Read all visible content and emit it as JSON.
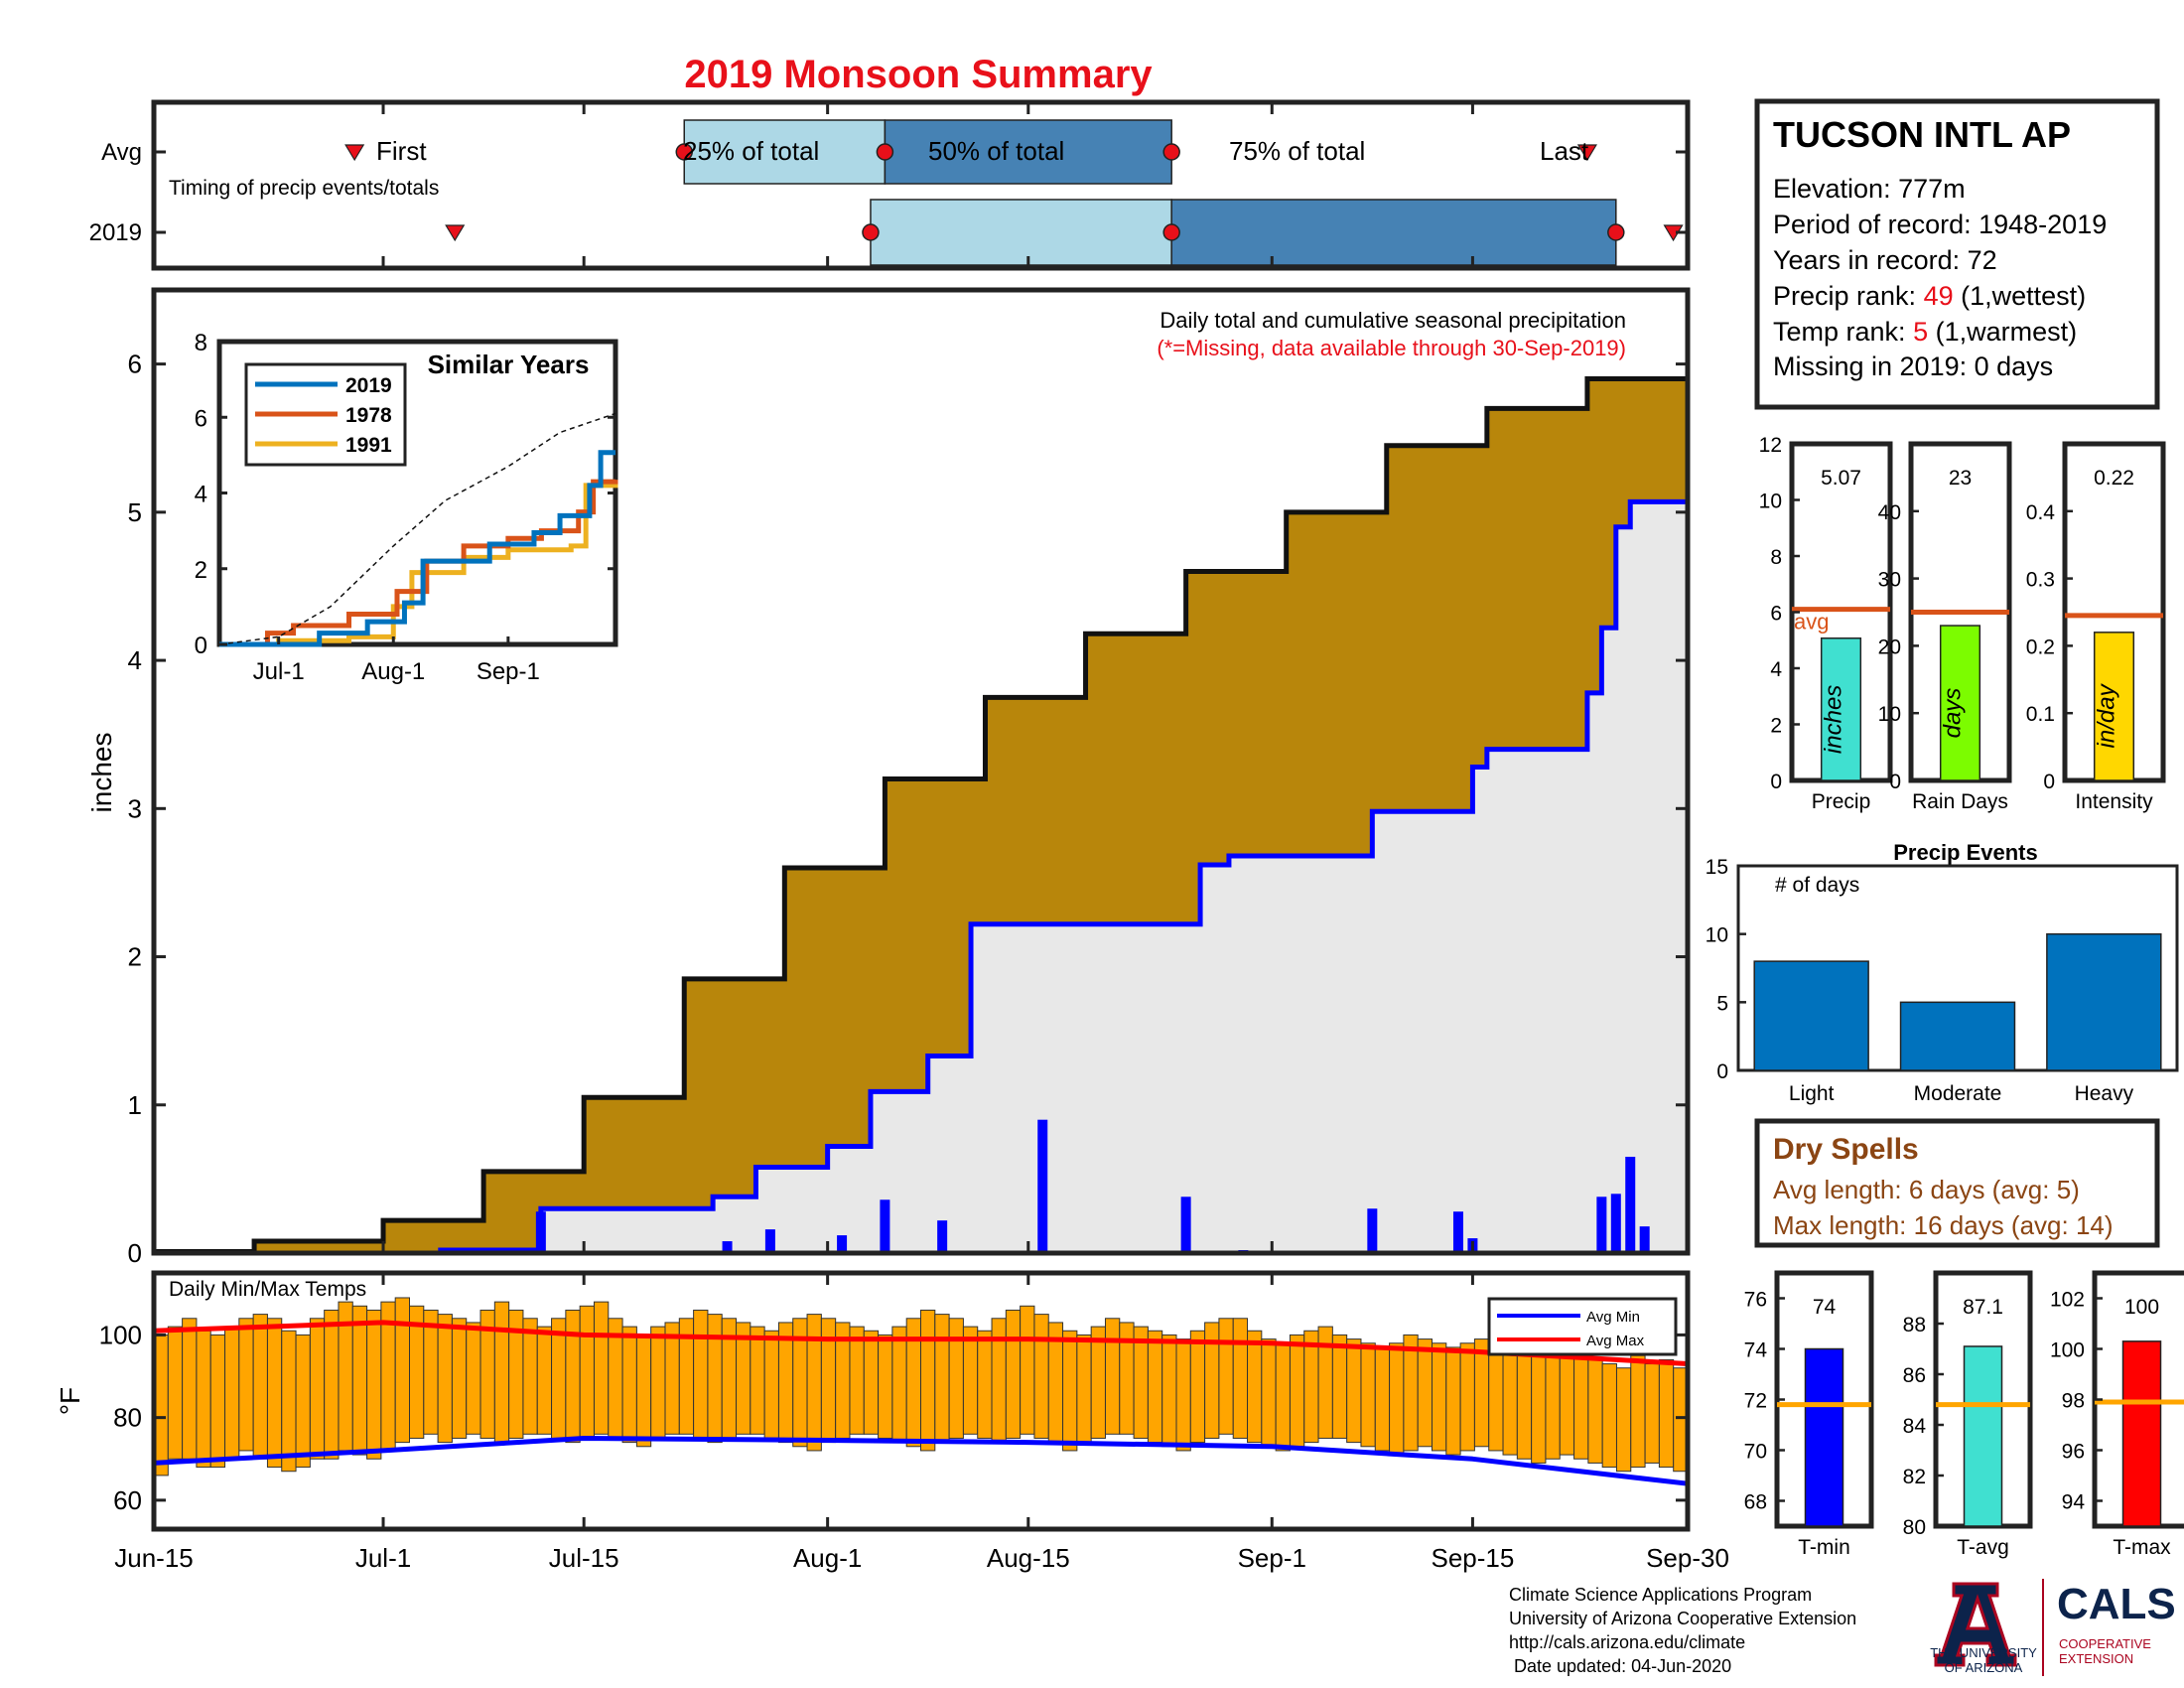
{
  "page": {
    "title": "2019 Monsoon Summary",
    "title_color": "#e8101a"
  },
  "timing_panel": {
    "row_labels": [
      "Avg",
      "2019"
    ],
    "subtitle": "Timing of precip events/totals",
    "labels": {
      "first": "First",
      "q25": "25% of total",
      "q50": "50% of total",
      "q75": "75% of total",
      "last": "Last"
    },
    "avg": {
      "first": "2019-06-29",
      "q25": "2019-07-22",
      "q50": "2019-08-05",
      "q75": "2019-08-25",
      "last": "2019-09-23"
    },
    "y2019": {
      "first": "2019-07-06",
      "q25": "2019-08-04",
      "q50": "2019-08-25",
      "q75": "2019-09-25",
      "last": "2019-09-29"
    },
    "colors": {
      "light": "#add8e6",
      "dark": "#4682b4",
      "marker": "#e8101a"
    }
  },
  "main_panel": {
    "subtitle": "Daily total and cumulative seasonal precipitation",
    "note": "(*=Missing, data available through 30-Sep-2019)",
    "ylabel": "inches",
    "yticks": [
      "0",
      "1",
      "2",
      "3",
      "4",
      "5",
      "6"
    ],
    "colors": {
      "avg_fill": "#b8860b",
      "obs_fill": "#e8e8e8",
      "obs_line": "#0000ff",
      "daily_bar": "#0000ff",
      "avg_line": "#111111"
    }
  },
  "inset": {
    "title": "Similar Years",
    "legend": [
      "2019",
      "1978",
      "1991"
    ],
    "colors": [
      "#0072bd",
      "#d95319",
      "#edb120"
    ],
    "yticks": [
      "0",
      "2",
      "4",
      "6",
      "8"
    ],
    "xticks": [
      "Jul-1",
      "Aug-1",
      "Sep-1"
    ]
  },
  "temp_panel": {
    "subtitle": "Daily Min/Max Temps",
    "ylabel": "°F",
    "yticks": [
      "60",
      "80",
      "100"
    ],
    "legend": [
      "Avg Min",
      "Avg Max"
    ],
    "colors": {
      "bar": "#ffa500",
      "avg_min": "#0000ff",
      "avg_max": "#ff0000"
    }
  },
  "xaxis": {
    "ticks": [
      "Jun-15",
      "Jul-1",
      "Jul-15",
      "Aug-1",
      "Aug-15",
      "Sep-1",
      "Sep-15",
      "Sep-30"
    ]
  },
  "station": {
    "name": "TUCSON INTL AP",
    "elevation": "Elevation: 777m",
    "period": "Period of record: 1948-2019",
    "years": "Years in record: 72",
    "precip_rank_prefix": "Precip rank: ",
    "precip_rank_value": "49",
    "precip_rank_suffix": " (1,wettest)",
    "temp_rank_prefix": "Temp rank: ",
    "temp_rank_value": "5",
    "temp_rank_suffix": " (1,warmest)",
    "missing": "Missing in 2019: 0 days"
  },
  "summary_bars": [
    {
      "label": "Precip",
      "value_text": "5.07",
      "unit": "inches",
      "value": 5.07,
      "avg": 6.1,
      "ymax": 12,
      "yticks": [
        "0",
        "2",
        "4",
        "6",
        "8",
        "10",
        "12"
      ],
      "color": "#40e0d0",
      "avg_text": "avg"
    },
    {
      "label": "Rain Days",
      "value_text": "23",
      "unit": "days",
      "value": 23,
      "avg": 25,
      "ymax": 50,
      "yticks": [
        "0",
        "10",
        "20",
        "30",
        "40"
      ],
      "color": "#7cfc00"
    },
    {
      "label": "Intensity",
      "value_text": "0.22",
      "unit": "in/day",
      "value": 0.22,
      "avg": 0.245,
      "ymax": 0.5,
      "yticks": [
        "0",
        "0.1",
        "0.2",
        "0.3",
        "0.4"
      ],
      "color": "#ffd700"
    }
  ],
  "precip_events": {
    "title": "Precip Events",
    "ylabel": "# of days",
    "categories": [
      "Light",
      "Moderate",
      "Heavy"
    ],
    "values": [
      8,
      5,
      10
    ],
    "ymax": 15,
    "yticks": [
      "0",
      "5",
      "10",
      "15"
    ],
    "color": "#0072bd"
  },
  "dry_spells": {
    "title": "Dry Spells",
    "avg_length": "Avg length: 6 days (avg: 5)",
    "max_length": "Max length: 16 days (avg: 14)",
    "color": "#8b4513"
  },
  "temp_bars": [
    {
      "label": "T-min",
      "value_text": "74",
      "value": 74,
      "avg": 71.8,
      "ymin": 67,
      "ymax": 77,
      "yticks": [
        "68",
        "70",
        "72",
        "74",
        "76"
      ],
      "color": "#0000ff"
    },
    {
      "label": "T-avg",
      "value_text": "87.1",
      "value": 87.1,
      "avg": 84.8,
      "ymin": 80,
      "ymax": 90,
      "yticks": [
        "80",
        "82",
        "84",
        "86",
        "88"
      ],
      "color": "#40e0d0"
    },
    {
      "label": "T-max",
      "value_text": "100",
      "value": 100.3,
      "avg": 97.9,
      "ymin": 93,
      "ymax": 103,
      "yticks": [
        "94",
        "96",
        "98",
        "100",
        "102"
      ],
      "color": "#ff0000"
    }
  ],
  "footer": {
    "line1": "Climate Science Applications Program",
    "line2": "University of Arizona Cooperative Extension",
    "line3": "http://cals.arizona.edu/climate",
    "line4": " Date updated: 04-Jun-2020",
    "logo_ua_1": "THE UNIVERSITY",
    "logo_ua_2": "OF ARIZONA",
    "logo_cals": "CALS",
    "logo_coop_1": "COOPERATIVE",
    "logo_coop_2": "EXTENSION"
  },
  "chart_data": [
    {
      "type": "area",
      "title": "Daily total and cumulative seasonal precipitation",
      "xlabel": "",
      "ylabel": "inches",
      "ylim": [
        0,
        6.5
      ],
      "x_range": [
        "2019-06-15",
        "2019-09-30"
      ],
      "series": [
        {
          "name": "",
          "kind": "average cumulative (step)",
          "x": [
            "2019-06-15",
            "2019-06-22",
            "2019-07-01",
            "2019-07-08",
            "2019-07-15",
            "2019-07-22",
            "2019-07-29",
            "2019-08-05",
            "2019-08-12",
            "2019-08-19",
            "2019-08-26",
            "2019-09-02",
            "2019-09-09",
            "2019-09-16",
            "2019-09-23",
            "2019-09-30"
          ],
          "values": [
            0.01,
            0.08,
            0.22,
            0.55,
            1.05,
            1.85,
            2.6,
            3.2,
            3.75,
            4.18,
            4.6,
            5.0,
            5.45,
            5.7,
            5.9,
            6.12
          ]
        },
        {
          "name": "",
          "kind": "2019 observed cumulative (step)",
          "x": [
            "2019-06-15",
            "2019-07-05",
            "2019-07-12",
            "2019-07-24",
            "2019-07-27",
            "2019-08-01",
            "2019-08-04",
            "2019-08-08",
            "2019-08-11",
            "2019-08-27",
            "2019-08-29",
            "2019-09-08",
            "2019-09-15",
            "2019-09-16",
            "2019-09-23",
            "2019-09-24",
            "2019-09-25",
            "2019-09-26",
            "2019-09-30"
          ],
          "values": [
            0.0,
            0.02,
            0.3,
            0.38,
            0.58,
            0.72,
            1.09,
            1.33,
            2.22,
            2.62,
            2.68,
            2.98,
            3.28,
            3.4,
            3.78,
            4.22,
            4.9,
            5.07,
            5.07
          ]
        },
        {
          "name": "",
          "kind": "2019 daily precip (bar)",
          "x": [
            "2019-07-12",
            "2019-07-25",
            "2019-07-28",
            "2019-08-02",
            "2019-08-05",
            "2019-08-09",
            "2019-08-16",
            "2019-08-26",
            "2019-08-30",
            "2019-09-08",
            "2019-09-14",
            "2019-09-15",
            "2019-09-24",
            "2019-09-25",
            "2019-09-26",
            "2019-09-27"
          ],
          "values": [
            0.28,
            0.08,
            0.16,
            0.12,
            0.36,
            0.22,
            0.9,
            0.38,
            0.02,
            0.3,
            0.28,
            0.1,
            0.38,
            0.4,
            0.65,
            0.18
          ]
        }
      ]
    },
    {
      "type": "line",
      "title": "Similar Years",
      "ylim": [
        0,
        8
      ],
      "x_range": [
        "2019-06-15",
        "2019-09-30"
      ],
      "xticks": [
        "Jul-1",
        "Aug-1",
        "Sep-1"
      ],
      "series": [
        {
          "name": "",
          "kind": "average (dashed)",
          "x": [
            "2019-06-15",
            "2019-07-01",
            "2019-07-15",
            "2019-08-01",
            "2019-08-15",
            "2019-09-01",
            "2019-09-15",
            "2019-09-30"
          ],
          "values": [
            0.0,
            0.2,
            1.0,
            2.6,
            3.8,
            4.7,
            5.6,
            6.1
          ]
        },
        {
          "name": "2019",
          "x": [
            "2019-06-15",
            "2019-07-12",
            "2019-07-25",
            "2019-08-04",
            "2019-08-09",
            "2019-08-27",
            "2019-09-08",
            "2019-09-15",
            "2019-09-23",
            "2019-09-26",
            "2019-09-30"
          ],
          "values": [
            0.0,
            0.3,
            0.6,
            1.1,
            2.2,
            2.65,
            2.95,
            3.4,
            4.2,
            5.07,
            5.07
          ]
        },
        {
          "name": "1978",
          "x": [
            "2019-06-15",
            "2019-06-28",
            "2019-07-05",
            "2019-07-20",
            "2019-08-02",
            "2019-08-10",
            "2019-08-20",
            "2019-09-01",
            "2019-09-10",
            "2019-09-20",
            "2019-09-24",
            "2019-09-30"
          ],
          "values": [
            0.0,
            0.3,
            0.5,
            0.8,
            1.4,
            2.2,
            2.6,
            2.8,
            3.0,
            3.5,
            4.3,
            4.35
          ]
        },
        {
          "name": "1991",
          "x": [
            "2019-06-15",
            "2019-07-01",
            "2019-07-20",
            "2019-08-01",
            "2019-08-06",
            "2019-08-20",
            "2019-09-01",
            "2019-09-18",
            "2019-09-22",
            "2019-09-30"
          ],
          "values": [
            0.0,
            0.1,
            0.2,
            1.0,
            1.9,
            2.3,
            2.5,
            2.6,
            4.2,
            4.3
          ]
        }
      ]
    },
    {
      "type": "bar",
      "title": "Daily Min/Max Temps",
      "ylabel": "°F",
      "ylim": [
        53,
        115
      ],
      "x_range": [
        "2019-06-15",
        "2019-09-30"
      ],
      "series": [
        {
          "name": "",
          "kind": "daily min/max range (floating bar)",
          "x_start": "2019-06-15",
          "min": [
            66,
            70,
            70,
            68,
            68,
            70,
            72,
            70,
            68,
            67,
            68,
            70,
            70,
            72,
            71,
            70,
            72,
            74,
            75,
            76,
            74,
            75,
            76,
            75,
            74,
            75,
            76,
            76,
            75,
            74,
            75,
            76,
            75,
            74,
            73,
            75,
            76,
            76,
            75,
            74,
            75,
            76,
            76,
            75,
            74,
            73,
            72,
            74,
            75,
            76,
            76,
            75,
            74,
            73,
            72,
            74,
            75,
            76,
            75,
            74,
            75,
            76,
            75,
            74,
            72,
            74,
            75,
            76,
            76,
            75,
            74,
            73,
            72,
            74,
            75,
            76,
            75,
            74,
            73,
            72,
            73,
            74,
            75,
            75,
            74,
            73,
            72,
            71,
            72,
            73,
            72,
            71,
            72,
            73,
            72,
            71,
            70,
            69,
            70,
            71,
            70,
            69,
            68,
            67,
            68,
            69,
            68,
            67
          ],
          "max": [
            100,
            102,
            104,
            101,
            100,
            102,
            104,
            105,
            104,
            101,
            100,
            104,
            106,
            108,
            107,
            106,
            108,
            109,
            107,
            106,
            105,
            104,
            103,
            106,
            108,
            106,
            104,
            102,
            104,
            106,
            107,
            108,
            104,
            102,
            100,
            102,
            103,
            104,
            106,
            105,
            104,
            103,
            102,
            101,
            103,
            104,
            105,
            104,
            103,
            102,
            101,
            100,
            102,
            104,
            106,
            105,
            104,
            102,
            101,
            104,
            106,
            107,
            105,
            103,
            101,
            100,
            102,
            104,
            103,
            102,
            101,
            100,
            99,
            101,
            103,
            104,
            104,
            101,
            99,
            98,
            100,
            101,
            102,
            100,
            99,
            98,
            97,
            98,
            100,
            99,
            98,
            97,
            98,
            99,
            98,
            97,
            96,
            95,
            96,
            97,
            96,
            94,
            93,
            92,
            95,
            93,
            94,
            92
          ]
        },
        {
          "name": "Avg Min",
          "x": [
            "2019-06-15",
            "2019-07-01",
            "2019-07-15",
            "2019-08-01",
            "2019-08-15",
            "2019-09-01",
            "2019-09-15",
            "2019-09-30"
          ],
          "values": [
            69,
            72,
            75,
            74.5,
            74,
            73,
            70,
            64
          ]
        },
        {
          "name": "Avg Max",
          "x": [
            "2019-06-15",
            "2019-07-01",
            "2019-07-15",
            "2019-08-01",
            "2019-08-15",
            "2019-09-01",
            "2019-09-15",
            "2019-09-30"
          ],
          "values": [
            101,
            103,
            100,
            99,
            99,
            98,
            96,
            93
          ]
        }
      ]
    },
    {
      "type": "bar",
      "title": "",
      "categories": [
        "Precip",
        "Rain Days",
        "Intensity"
      ],
      "values": [
        5.07,
        23,
        0.22
      ],
      "averages": [
        6.1,
        25,
        0.245
      ]
    },
    {
      "type": "bar",
      "title": "Precip Events",
      "ylabel": "# of days",
      "categories": [
        "Light",
        "Moderate",
        "Heavy"
      ],
      "values": [
        8,
        5,
        10
      ],
      "ylim": [
        0,
        15
      ]
    },
    {
      "type": "bar",
      "title": "",
      "categories": [
        "T-min",
        "T-avg",
        "T-max"
      ],
      "values": [
        74,
        87.1,
        100.3
      ],
      "averages": [
        71.8,
        84.8,
        97.9
      ]
    }
  ]
}
